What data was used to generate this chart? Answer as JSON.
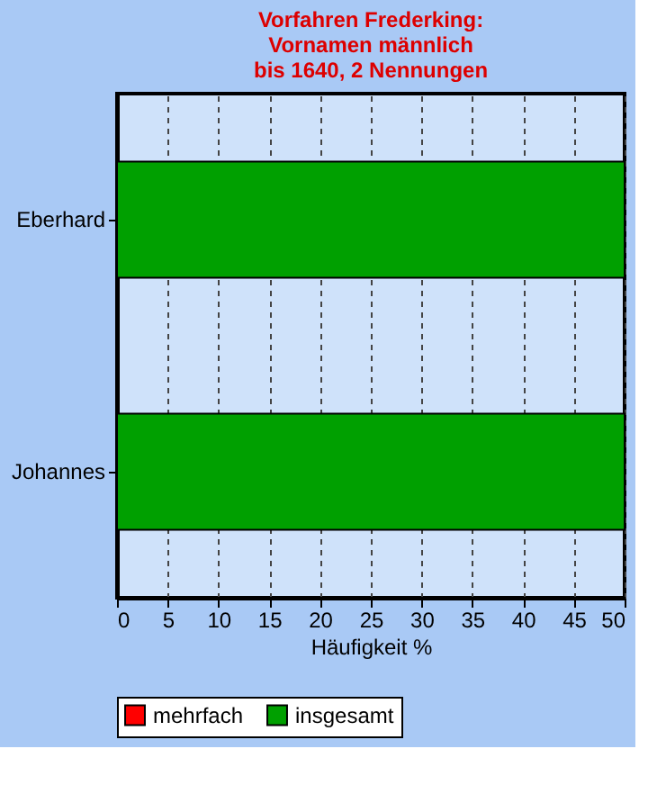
{
  "chart_data": {
    "type": "bar",
    "orientation": "horizontal",
    "title": "Vorfahren Frederking:\nVornamen männlich\nbis 1640, 2 Nennungen",
    "xlabel": "Häufigkeit %",
    "categories": [
      "Eberhard",
      "Johannes"
    ],
    "series": [
      {
        "name": "mehrfach",
        "color": "#ff0000",
        "values": [
          null,
          null
        ]
      },
      {
        "name": "insgesamt",
        "color": "#00a000",
        "values": [
          50,
          50
        ]
      }
    ],
    "xlim": [
      0,
      50
    ],
    "xticks": [
      0,
      5,
      10,
      15,
      20,
      25,
      30,
      35,
      40,
      45,
      50
    ],
    "grid": "x",
    "legend": "bottom"
  }
}
